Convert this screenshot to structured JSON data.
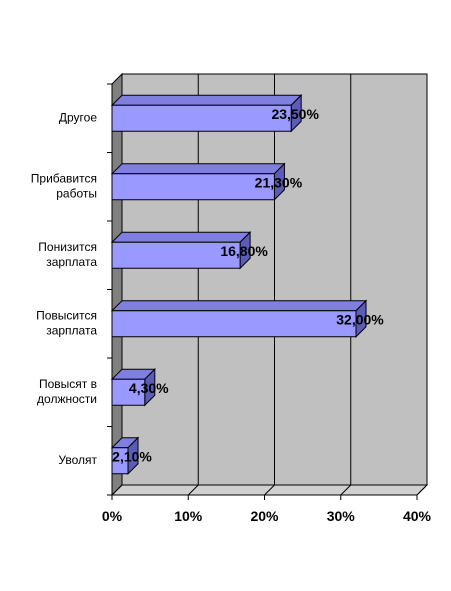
{
  "chart_data": {
    "type": "bar",
    "orientation": "horizontal",
    "categories": [
      [
        "Другое"
      ],
      [
        "Прибавится",
        "работы"
      ],
      [
        "Понизится",
        "зарплата"
      ],
      [
        "Повысится",
        "зарплата"
      ],
      [
        "Повысят в",
        "должности"
      ],
      [
        "Уволят"
      ]
    ],
    "values": [
      23.5,
      21.3,
      16.8,
      32.0,
      4.3,
      2.1
    ],
    "data_labels": [
      "23,50%",
      "21,30%",
      "16,80%",
      "32,00%",
      "4,30%",
      "2,10%"
    ],
    "xlim": [
      0,
      40
    ],
    "x_ticks": [
      0,
      10,
      20,
      30,
      40
    ],
    "x_tick_labels": [
      "0%",
      "10%",
      "20%",
      "30%",
      "40%"
    ],
    "grid": true,
    "legend": "none",
    "title": "",
    "xlabel": "",
    "ylabel": "",
    "colors": {
      "bar_front": "#9999ff",
      "bar_top": "#7f7fe0",
      "bar_side": "#5c5cb8",
      "plot_back": "#c0c0c0",
      "plot_side_wall": "#808080",
      "grid": "#000000"
    }
  }
}
